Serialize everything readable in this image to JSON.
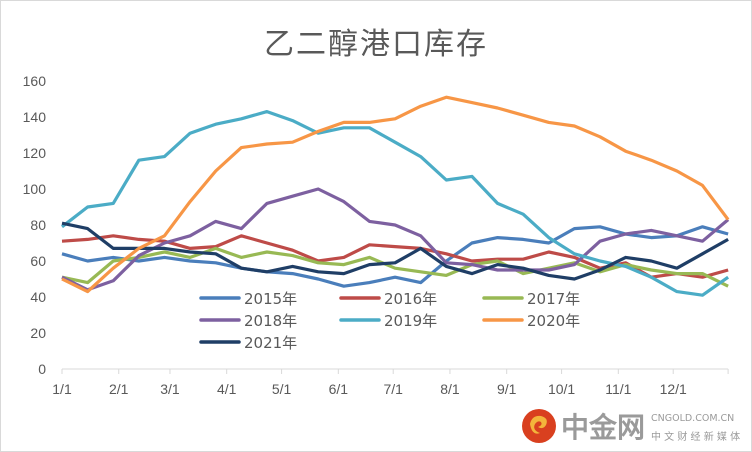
{
  "chart_data": {
    "type": "line",
    "title": "乙二醇港口库存",
    "xlabel": "",
    "ylabel": "",
    "ylim": [
      0,
      160
    ],
    "yticks": [
      "0",
      "20",
      "40",
      "60",
      "80",
      "100",
      "120",
      "140",
      "160"
    ],
    "xticks": [
      "1/1",
      "2/1",
      "3/1",
      "4/1",
      "5/1",
      "6/1",
      "7/1",
      "8/1",
      "9/1",
      "10/1",
      "11/1",
      "12/1"
    ],
    "grid": false,
    "legend": "bottom-inside",
    "x": [
      "1/1",
      "1/15",
      "1/29",
      "2/12",
      "2/26",
      "3/12",
      "3/26",
      "4/9",
      "4/23",
      "5/7",
      "5/21",
      "6/4",
      "6/18",
      "7/2",
      "7/16",
      "7/30",
      "8/13",
      "8/27",
      "9/10",
      "9/24",
      "10/8",
      "10/22",
      "11/5",
      "11/19",
      "12/3",
      "12/17",
      "12/31"
    ],
    "series": [
      {
        "name": "2015年",
        "color": "#4a7ebb",
        "values": [
          64,
          60,
          62,
          60,
          62,
          60,
          59,
          56,
          54,
          53,
          50,
          46,
          48,
          51,
          48,
          60,
          70,
          73,
          72,
          70,
          78,
          79,
          75,
          73,
          74,
          79,
          75
        ]
      },
      {
        "name": "2016年",
        "color": "#be4b48",
        "values": [
          71,
          72,
          74,
          72,
          71,
          67,
          68,
          74,
          70,
          66,
          60,
          62,
          69,
          68,
          67,
          64,
          60,
          61,
          61,
          65,
          62,
          56,
          59,
          51,
          53,
          51,
          55
        ]
      },
      {
        "name": "2017年",
        "color": "#98b954",
        "values": [
          51,
          48,
          60,
          62,
          65,
          62,
          67,
          62,
          65,
          63,
          59,
          58,
          62,
          56,
          54,
          52,
          58,
          60,
          53,
          56,
          59,
          54,
          58,
          55,
          53,
          53,
          46
        ]
      },
      {
        "name": "2018年",
        "color": "#7d60a0",
        "values": [
          51,
          44,
          49,
          63,
          70,
          74,
          82,
          78,
          92,
          96,
          100,
          93,
          82,
          80,
          74,
          59,
          58,
          55,
          55,
          55,
          58,
          71,
          75,
          77,
          74,
          71,
          83
        ]
      },
      {
        "name": "2019年",
        "color": "#4bacc6",
        "values": [
          79,
          90,
          92,
          116,
          118,
          131,
          136,
          139,
          143,
          138,
          131,
          134,
          134,
          126,
          118,
          105,
          107,
          92,
          86,
          73,
          64,
          60,
          57,
          51,
          43,
          41,
          51
        ]
      },
      {
        "name": "2020年",
        "color": "#f79646",
        "values": [
          50,
          43,
          56,
          67,
          74,
          93,
          110,
          123,
          125,
          126,
          132,
          137,
          137,
          139,
          146,
          151,
          148,
          145,
          141,
          137,
          135,
          129,
          121,
          116,
          110,
          102,
          83
        ]
      },
      {
        "name": "2021年",
        "color": "#1f3e66",
        "values": [
          81,
          78,
          67,
          67,
          67,
          65,
          64,
          56,
          54,
          57,
          54,
          53,
          58,
          59,
          67,
          57,
          53,
          58,
          56,
          52,
          50,
          55,
          62,
          60,
          56,
          64,
          72
        ]
      }
    ]
  },
  "watermark": {
    "brand": "中金网",
    "domain": "CNGOLD.COM.CN",
    "slogan": "中 文 财 经 新 媒 体"
  }
}
